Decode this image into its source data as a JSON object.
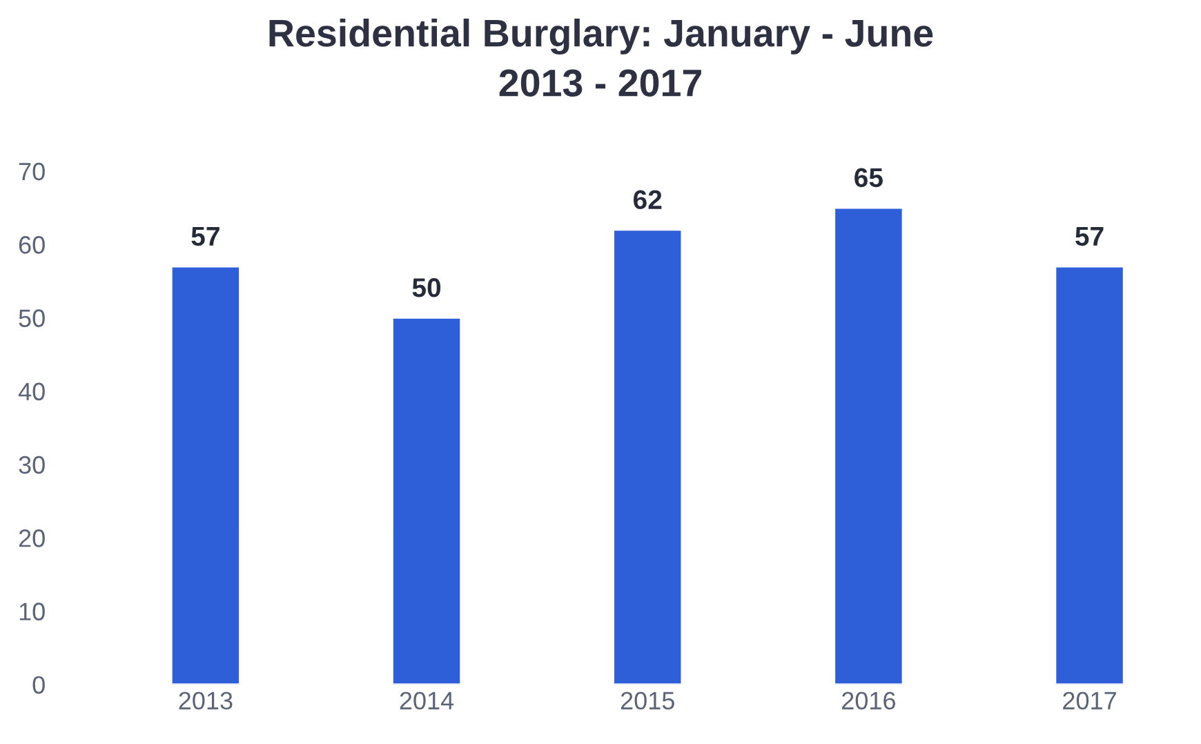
{
  "chart_data": {
    "type": "bar",
    "title": "Residential Burglary: January - June\n2013 - 2017",
    "categories": [
      "2013",
      "2014",
      "2015",
      "2016",
      "2017"
    ],
    "values": [
      57,
      50,
      62,
      65,
      57
    ],
    "color": "#2f5fd8",
    "ylim": [
      0,
      70
    ],
    "yticks": [
      0,
      10,
      20,
      30,
      40,
      50,
      60,
      70
    ],
    "grid": false,
    "data_labels": true
  }
}
